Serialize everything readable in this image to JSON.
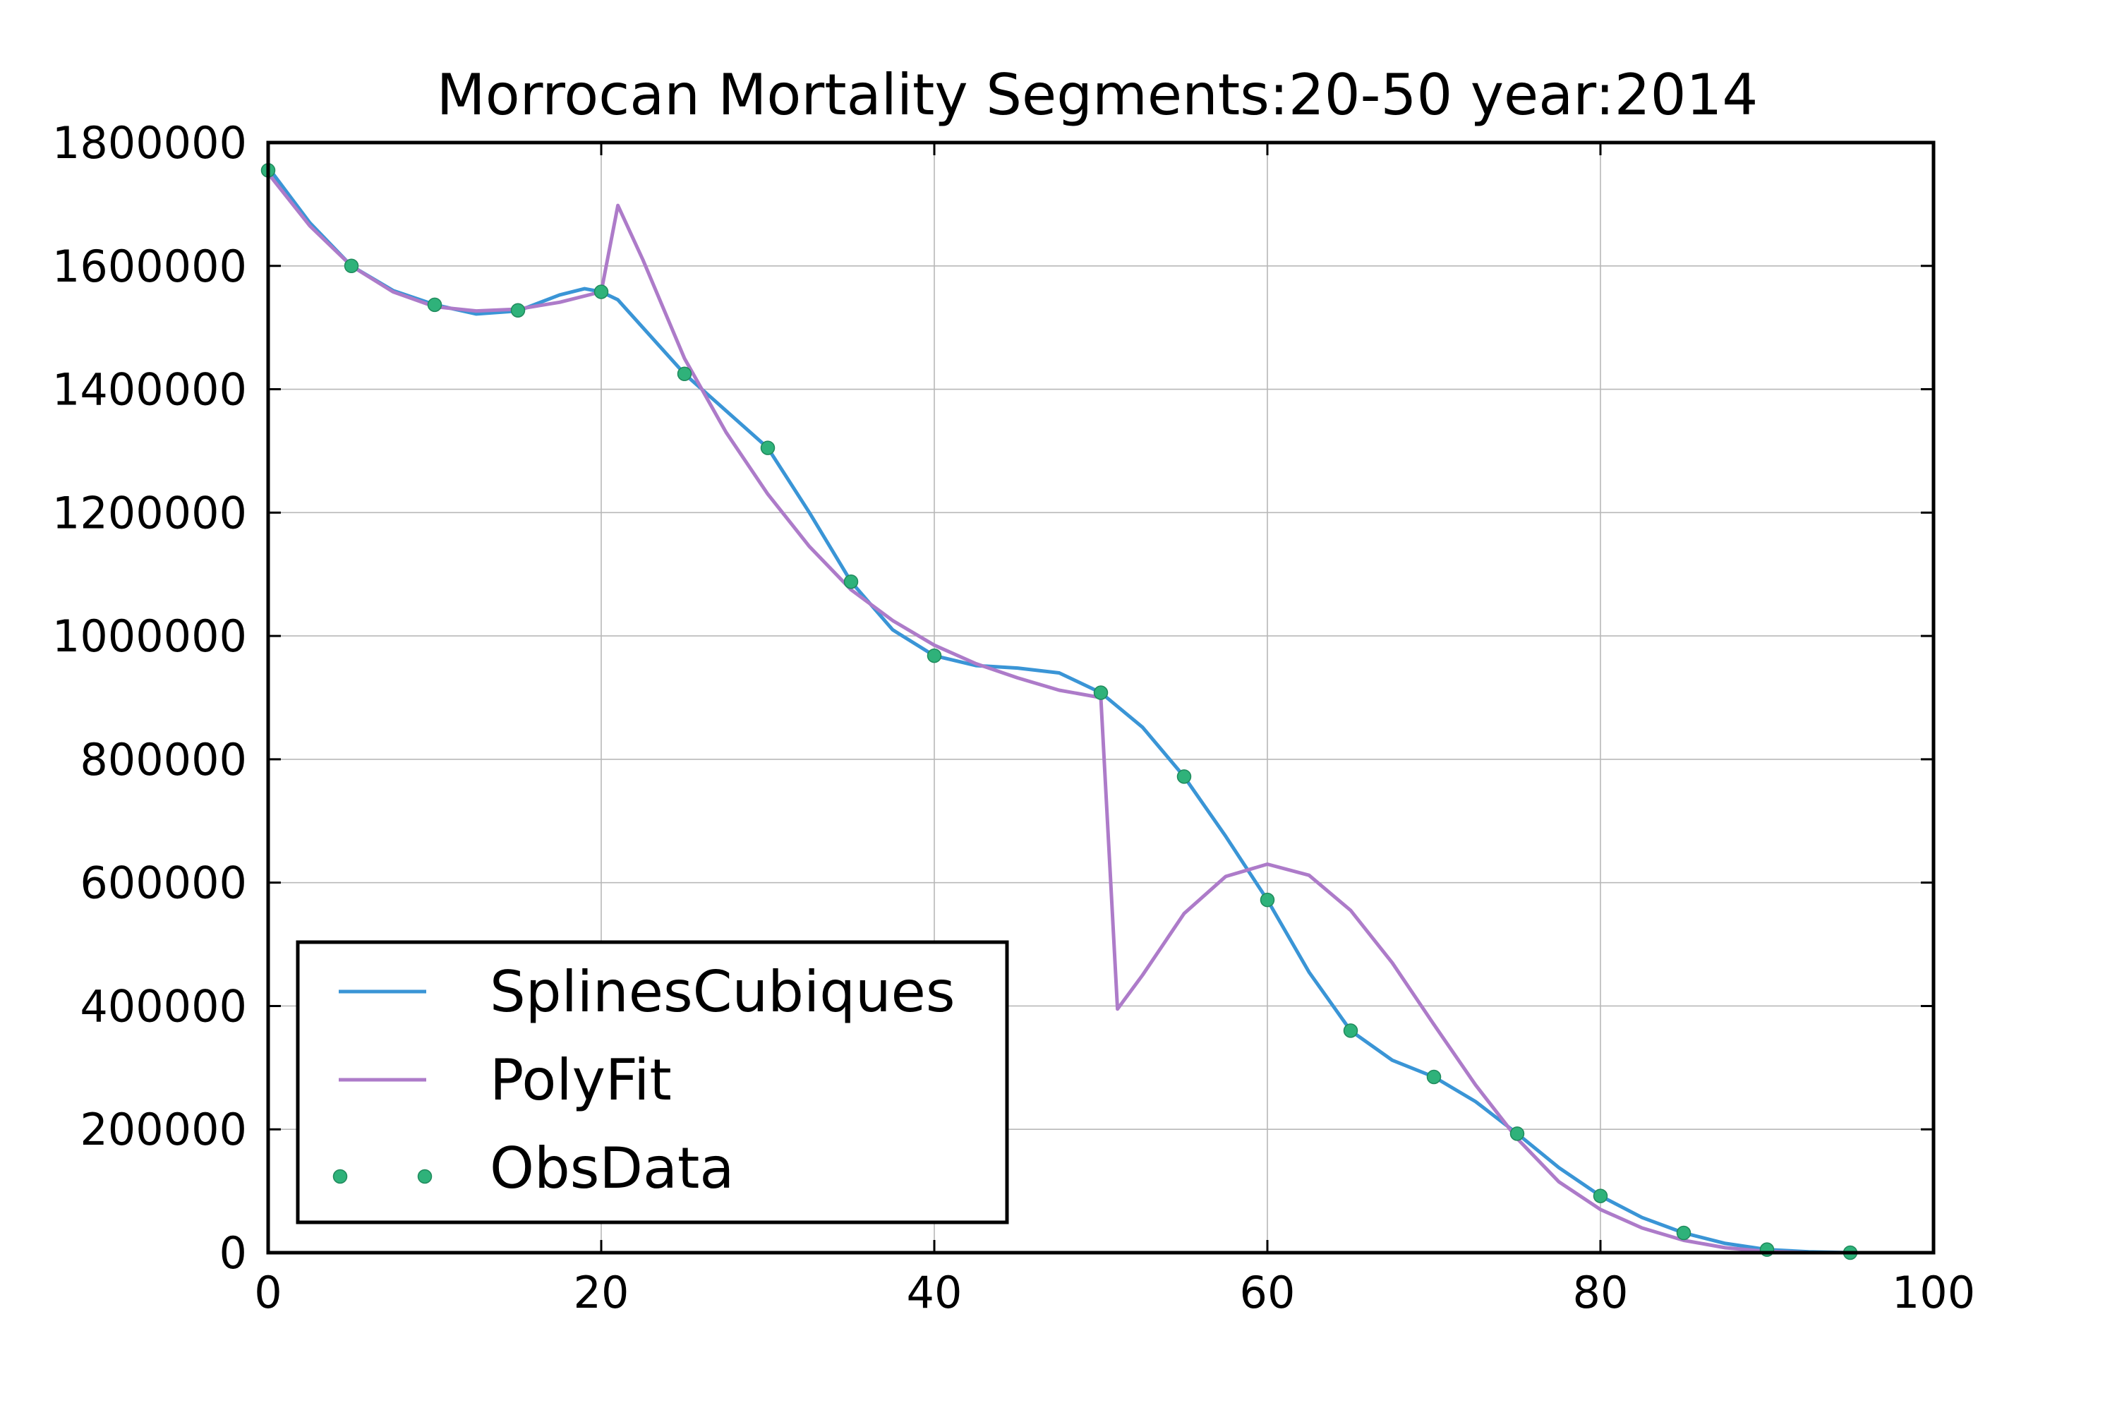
{
  "chart_data": {
    "type": "line",
    "title": "Morrocan Mortality Segments:20-50 year:2014",
    "xlabel": "",
    "ylabel": "",
    "xlim": [
      0,
      100
    ],
    "ylim": [
      0,
      1800000
    ],
    "x_ticks": [
      "0",
      "20",
      "40",
      "60",
      "80",
      "100"
    ],
    "y_ticks": [
      "0",
      "200000",
      "400000",
      "600000",
      "800000",
      "1000000",
      "1200000",
      "1400000",
      "1600000",
      "1800000"
    ],
    "grid": true,
    "legend_position": "lower-left",
    "series": [
      {
        "name": "SplinesCubiques",
        "kind": "line",
        "color": "#3a95d6",
        "x": [
          0,
          2.5,
          5,
          7.5,
          10,
          12.5,
          15,
          17.5,
          19,
          20,
          21,
          22.5,
          25,
          27.5,
          30,
          32.5,
          35,
          37.5,
          40,
          42.5,
          45,
          47.5,
          50,
          52.5,
          55,
          57.5,
          60,
          62.5,
          65,
          67.5,
          70,
          72.5,
          75,
          77.5,
          80,
          82.5,
          85,
          87.5,
          90,
          92.5,
          95
        ],
        "y": [
          1760000,
          1670000,
          1600000,
          1560000,
          1537000,
          1522000,
          1527000,
          1553000,
          1563000,
          1558000,
          1545000,
          1500000,
          1425000,
          1365000,
          1305000,
          1200000,
          1088000,
          1010000,
          968000,
          952000,
          948000,
          940000,
          908000,
          852000,
          772000,
          675000,
          572000,
          455000,
          360000,
          312000,
          285000,
          245000,
          193000,
          138000,
          92000,
          57000,
          32000,
          15000,
          5000,
          1500,
          0
        ]
      },
      {
        "name": "PolyFit",
        "kind": "line",
        "color": "#ad7bc9",
        "x": [
          0,
          2.5,
          5,
          7.5,
          10,
          12.5,
          15,
          17.5,
          20,
          21,
          22.5,
          25,
          27.5,
          30,
          32.5,
          35,
          37.5,
          40,
          42.5,
          45,
          47.5,
          50,
          51,
          52.5,
          55,
          57.5,
          60,
          62.5,
          65,
          67.5,
          70,
          72.5,
          75,
          77.5,
          80,
          82.5,
          85,
          87.5,
          90,
          92.5,
          95
        ],
        "y": [
          1750000,
          1665000,
          1600000,
          1558000,
          1534000,
          1527000,
          1530000,
          1541000,
          1558000,
          1698000,
          1610000,
          1450000,
          1330000,
          1230000,
          1145000,
          1075000,
          1025000,
          985000,
          955000,
          932000,
          912000,
          900000,
          395000,
          450000,
          550000,
          610000,
          630000,
          612000,
          555000,
          470000,
          370000,
          272000,
          185000,
          115000,
          70000,
          40000,
          20000,
          8000,
          2000,
          0,
          0
        ]
      },
      {
        "name": "ObsData",
        "kind": "scatter",
        "color": "#2fb27a",
        "x": [
          0,
          5,
          10,
          15,
          20,
          25,
          30,
          35,
          40,
          50,
          55,
          60,
          65,
          70,
          75,
          80,
          85,
          90,
          95
        ],
        "y": [
          1755000,
          1600000,
          1537000,
          1528000,
          1558000,
          1425000,
          1305000,
          1088000,
          968000,
          908000,
          772000,
          572000,
          360000,
          285000,
          193000,
          92000,
          32000,
          5000,
          0
        ]
      }
    ]
  }
}
